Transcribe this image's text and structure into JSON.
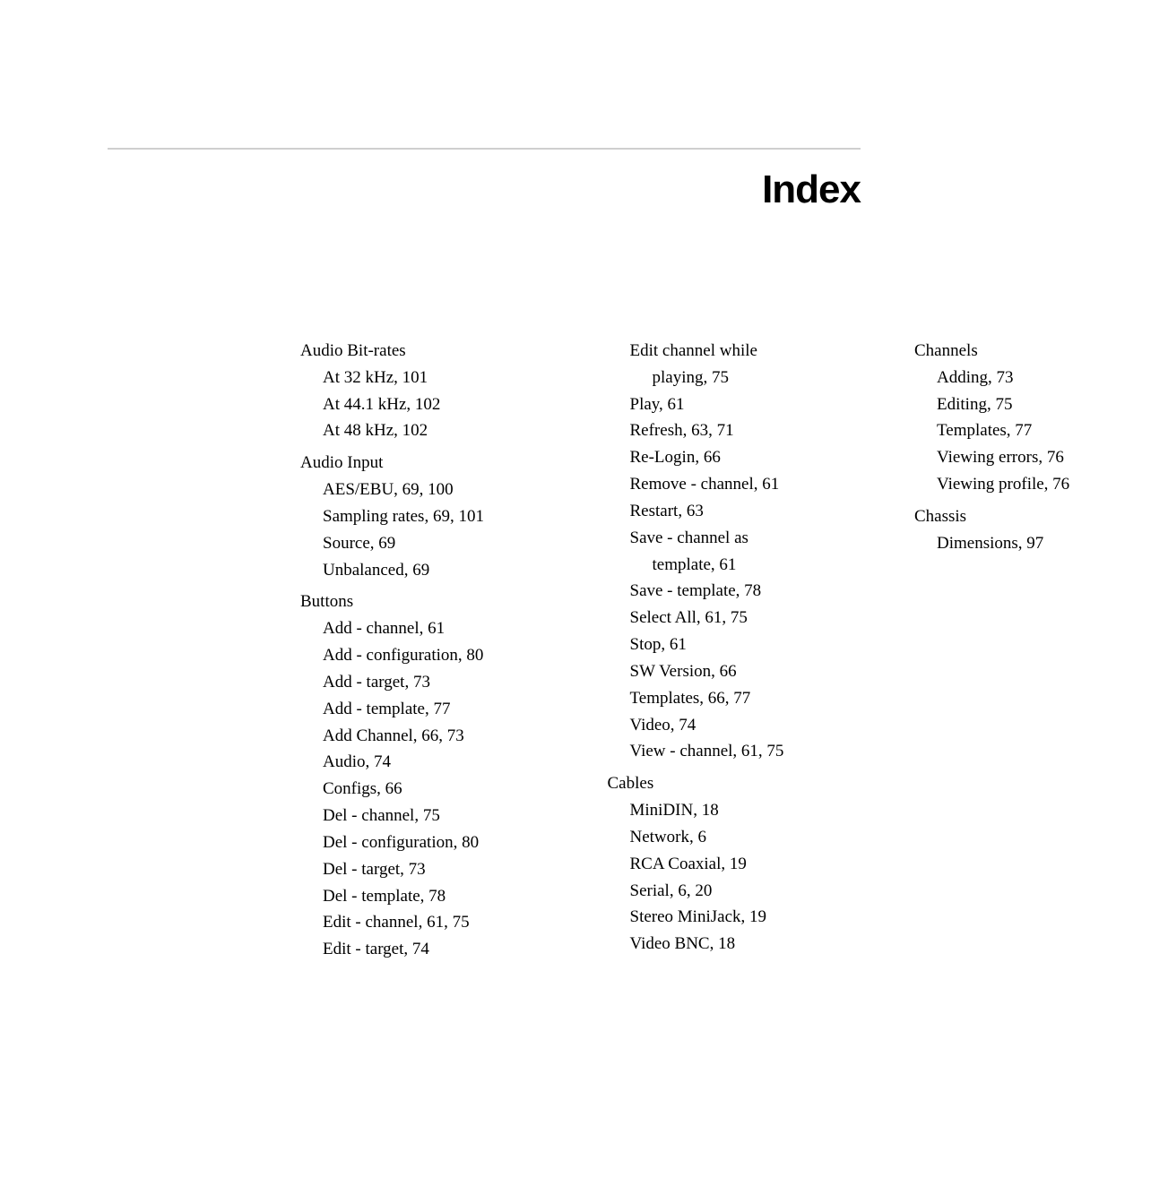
{
  "title": "Index",
  "sections": [
    {
      "heading": "Audio Bit-rates",
      "items": [
        {
          "text": "At 32 kHz, 101"
        },
        {
          "text": "At 44.1 kHz, 102"
        },
        {
          "text": "At 48 kHz, 102"
        }
      ]
    },
    {
      "heading": "Audio Input",
      "items": [
        {
          "text": "AES/EBU, 69, 100"
        },
        {
          "text": "Sampling rates, 69, 101"
        },
        {
          "text": "Source, 69"
        },
        {
          "text": "Unbalanced, 69"
        }
      ]
    },
    {
      "heading": "Buttons",
      "items": [
        {
          "text": "Add - channel, 61"
        },
        {
          "text": "Add - configuration, 80"
        },
        {
          "text": "Add - target, 73"
        },
        {
          "text": "Add - template, 77"
        },
        {
          "text": "Add Channel, 66, 73"
        },
        {
          "text": "Audio, 74"
        },
        {
          "text": "Configs, 66"
        },
        {
          "text": "Del - channel, 75"
        },
        {
          "text": "Del - configuration, 80"
        },
        {
          "text": "Del - target, 73"
        },
        {
          "text": "Del - template, 78"
        },
        {
          "text": "Edit - channel, 61, 75"
        },
        {
          "text": "Edit - target, 74"
        },
        {
          "text": "Edit channel while",
          "cont": "playing, 75"
        },
        {
          "text": "Play, 61"
        },
        {
          "text": "Refresh, 63, 71"
        },
        {
          "text": "Re-Login, 66"
        },
        {
          "text": "Remove - channel, 61"
        },
        {
          "text": "Restart, 63"
        },
        {
          "text": "Save - channel as",
          "cont": "template, 61"
        },
        {
          "text": "Save - template, 78"
        },
        {
          "text": "Select All, 61, 75"
        },
        {
          "text": "Stop, 61"
        },
        {
          "text": "SW Version, 66"
        },
        {
          "text": "Templates, 66, 77"
        },
        {
          "text": "Video, 74"
        },
        {
          "text": "View - channel, 61, 75"
        }
      ]
    },
    {
      "heading": "Cables",
      "items": [
        {
          "text": "MiniDIN, 18"
        },
        {
          "text": "Network, 6"
        },
        {
          "text": "RCA Coaxial, 19"
        },
        {
          "text": "Serial, 6, 20"
        },
        {
          "text": "Stereo MiniJack, 19"
        },
        {
          "text": "Video BNC, 18"
        }
      ]
    },
    {
      "heading": "Channels",
      "items": [
        {
          "text": "Adding, 73"
        },
        {
          "text": "Editing, 75"
        },
        {
          "text": "Templates, 77"
        },
        {
          "text": "Viewing errors, 76"
        },
        {
          "text": "Viewing profile, 76"
        }
      ]
    },
    {
      "heading": "Chassis",
      "items": [
        {
          "text": "Dimensions, 97"
        }
      ]
    }
  ]
}
